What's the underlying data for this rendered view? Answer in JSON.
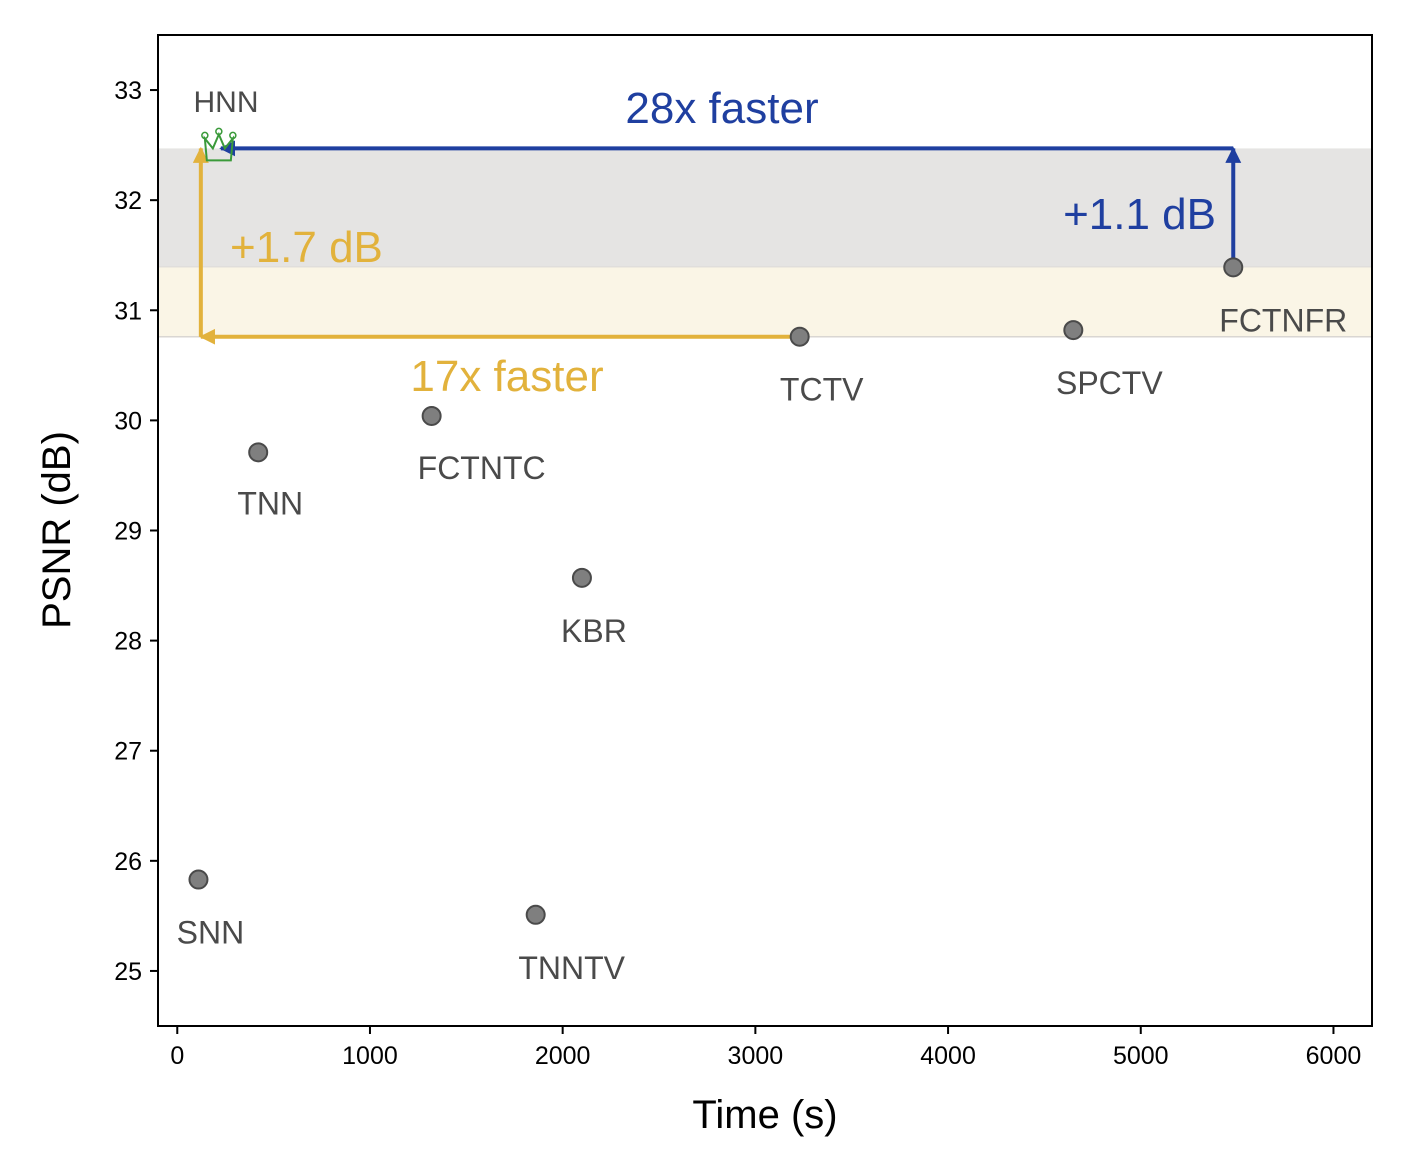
{
  "chart_data": {
    "type": "scatter",
    "title": "",
    "xlabel": "Time (s)",
    "ylabel": "PSNR (dB)",
    "xlim": [
      -100,
      6200
    ],
    "ylim": [
      24.5,
      33.5
    ],
    "xticks": [
      0,
      1000,
      2000,
      3000,
      4000,
      5000,
      6000
    ],
    "xtick_labels": [
      "0",
      "1000",
      "2000",
      "3000",
      "4000",
      "5000",
      "6000"
    ],
    "yticks": [
      25,
      26,
      27,
      28,
      29,
      30,
      31,
      32,
      33
    ],
    "ytick_labels": [
      "25",
      "26",
      "27",
      "28",
      "29",
      "30",
      "31",
      "32",
      "33"
    ],
    "grid": false,
    "points": [
      {
        "name": "SNN",
        "x": 110,
        "y": 25.83
      },
      {
        "name": "TNN",
        "x": 420,
        "y": 29.71
      },
      {
        "name": "FCTNTC",
        "x": 1320,
        "y": 30.04
      },
      {
        "name": "TNNTV",
        "x": 1860,
        "y": 25.51
      },
      {
        "name": "KBR",
        "x": 2100,
        "y": 28.57
      },
      {
        "name": "TCTV",
        "x": 3230,
        "y": 30.76
      },
      {
        "name": "SPCTV",
        "x": 4650,
        "y": 30.82
      },
      {
        "name": "FCTNFR",
        "x": 5480,
        "y": 31.39
      }
    ],
    "highlight": {
      "name": "HNN",
      "x": 195,
      "y": 32.47,
      "marker": "crown",
      "color": "#3a9a3a"
    },
    "bands": [
      {
        "y0": 31.39,
        "y1": 32.47,
        "color": "#e5e4e3"
      },
      {
        "y0": 30.76,
        "y1": 31.39,
        "color": "#faf5e6"
      }
    ],
    "annotations": [
      {
        "text": "28x faster",
        "color": "#1f3fa0"
      },
      {
        "text": "+1.1 dB",
        "color": "#1f3fa0"
      },
      {
        "text": "17x faster",
        "color": "#e2b23c"
      },
      {
        "text": "+1.7 dB",
        "color": "#e2b23c"
      }
    ],
    "arrow_colors": {
      "blue": "#1f3fa0",
      "gold": "#e2b23c"
    }
  }
}
